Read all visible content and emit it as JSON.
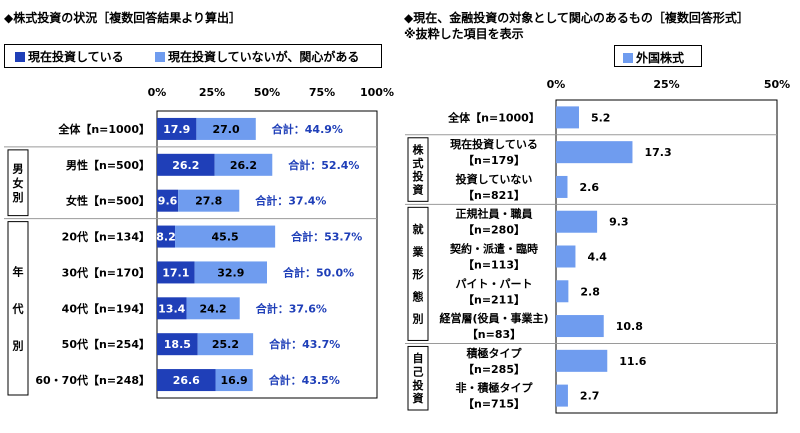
{
  "colors": {
    "dark_blue": "#1f3fb8",
    "light_blue": "#6f9cef",
    "frame": "#000000",
    "divider": "#9a9a9a",
    "total_text": "#1f3fb8"
  },
  "left": {
    "title": "◆株式投資の状況［複数回答結果より算出］",
    "legend": {
      "dark_label": "現在投資している",
      "light_label": "現在投資していないが、関心がある"
    },
    "axis_ticks": [
      "0%",
      "25%",
      "50%",
      "75%",
      "100%"
    ],
    "groups": [
      {
        "label": "男女別",
        "from": 1,
        "to": 2
      },
      {
        "label": "年代別",
        "from": 3,
        "to": 7
      }
    ]
  },
  "right": {
    "title_line1": "◆現在、金融投資の対象として関心のあるもの［複数回答形式］",
    "title_line2": "※抜粋した項目を表示",
    "legend": {
      "label": "外国株式"
    },
    "axis_ticks": [
      "0%",
      "25%",
      "50%"
    ],
    "groups": [
      {
        "label": "株式投資",
        "from": 1,
        "to": 2
      },
      {
        "label": "就業形態別",
        "from": 3,
        "to": 6
      },
      {
        "label": "自己投資",
        "from": 7,
        "to": 8
      }
    ]
  },
  "chart_data": [
    {
      "type": "bar",
      "stacked": true,
      "orientation": "horizontal",
      "title": "◆株式投資の状況［複数回答結果より算出］",
      "categories": [
        "全体【n=1000】",
        "男性【n=500】",
        "女性【n=500】",
        "20代【n=134】",
        "30代【n=170】",
        "40代【n=194】",
        "50代【n=254】",
        "60・70代【n=248】"
      ],
      "series": [
        {
          "name": "現在投資している",
          "values": [
            17.9,
            26.2,
            9.6,
            8.2,
            17.1,
            13.4,
            18.5,
            26.6
          ]
        },
        {
          "name": "現在投資していないが、関心がある",
          "values": [
            27.0,
            26.2,
            27.8,
            45.5,
            32.9,
            24.2,
            25.2,
            16.9
          ]
        }
      ],
      "totals": [
        "合計：44.9%",
        "合計：52.4%",
        "合計：37.4%",
        "合計：53.7%",
        "合計：50.0%",
        "合計：37.6%",
        "合計：43.7%",
        "合計：43.5%"
      ],
      "xlim": [
        0,
        100
      ],
      "legend_position": "top"
    },
    {
      "type": "bar",
      "orientation": "horizontal",
      "title": "◆現在、金融投資の対象として関心のあるもの［複数回答形式］",
      "categories": [
        [
          "全体【n=1000】"
        ],
        [
          "現在投資している",
          "【n=179】"
        ],
        [
          "投資していない",
          "【n=821】"
        ],
        [
          "正規社員・職員",
          "【n=280】"
        ],
        [
          "契約・派遣・臨時",
          "【n=113】"
        ],
        [
          "パイト・パート",
          "【n=211】"
        ],
        [
          "経営層(役員・事業主)",
          "【n=83】"
        ],
        [
          "積極タイプ",
          "【n=285】"
        ],
        [
          "非・積極タイプ",
          "【n=715】"
        ]
      ],
      "series": [
        {
          "name": "外国株式",
          "values": [
            5.2,
            17.3,
            2.6,
            9.3,
            4.4,
            2.8,
            10.8,
            11.6,
            2.7
          ]
        }
      ],
      "xlim": [
        0,
        50
      ],
      "legend_position": "top"
    }
  ]
}
